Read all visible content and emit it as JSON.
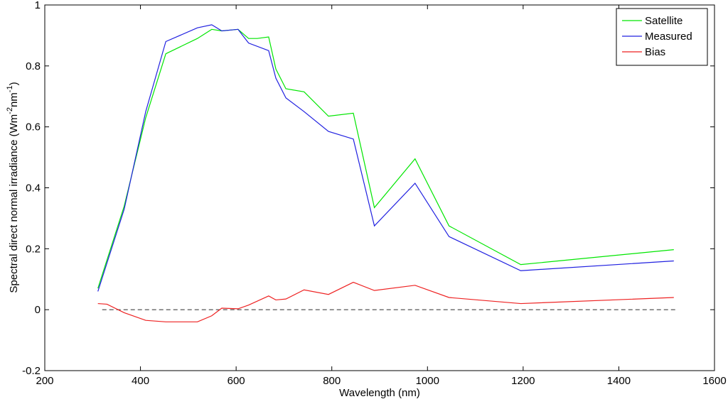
{
  "chart_data": {
    "type": "line",
    "xlabel": "Wavelength (nm)",
    "ylabel": [
      "Spectral direct normal irradiance (Wm",
      "-2",
      "nm",
      "-1",
      ")"
    ],
    "xlim": [
      200,
      1600
    ],
    "xticks": [
      200,
      400,
      600,
      800,
      1000,
      1200,
      1400,
      1600
    ],
    "ylim": [
      -0.2,
      1
    ],
    "yticks": [
      -0.2,
      0,
      0.2,
      0.4,
      0.6,
      0.8,
      1
    ],
    "legend": "top-right",
    "series": [
      {
        "name": "Satellite",
        "color": "#00e600",
        "x": [
          311,
          366,
          411,
          453,
          519,
          549,
          570,
          604,
          626,
          644,
          668,
          683,
          704,
          742,
          793,
          845,
          889,
          974,
          1045,
          1195,
          1515
        ],
        "values": [
          0.07,
          0.34,
          0.63,
          0.84,
          0.89,
          0.92,
          0.915,
          0.92,
          0.89,
          0.89,
          0.895,
          0.79,
          0.725,
          0.715,
          0.635,
          0.645,
          0.335,
          0.495,
          0.275,
          0.148,
          0.197
        ]
      },
      {
        "name": "Measured",
        "color": "#2020e0",
        "x": [
          311,
          366,
          411,
          453,
          519,
          549,
          570,
          604,
          626,
          668,
          683,
          704,
          742,
          793,
          845,
          889,
          974,
          1045,
          1195,
          1515
        ],
        "values": [
          0.06,
          0.33,
          0.65,
          0.88,
          0.925,
          0.935,
          0.915,
          0.92,
          0.875,
          0.85,
          0.76,
          0.695,
          0.65,
          0.585,
          0.56,
          0.275,
          0.415,
          0.24,
          0.128,
          0.16
        ]
      },
      {
        "name": "Bias",
        "color": "#ee2222",
        "x": [
          311,
          330,
          366,
          411,
          453,
          519,
          549,
          570,
          604,
          626,
          668,
          683,
          704,
          742,
          793,
          845,
          889,
          974,
          1045,
          1195,
          1515
        ],
        "values": [
          0.02,
          0.018,
          -0.01,
          -0.035,
          -0.04,
          -0.04,
          -0.02,
          0.005,
          0.003,
          0.015,
          0.045,
          0.032,
          0.035,
          0.065,
          0.05,
          0.09,
          0.063,
          0.08,
          0.04,
          0.02,
          0.04
        ]
      }
    ],
    "reference_line": {
      "y": 0,
      "x": [
        320,
        1520
      ],
      "color": "#444444"
    }
  }
}
